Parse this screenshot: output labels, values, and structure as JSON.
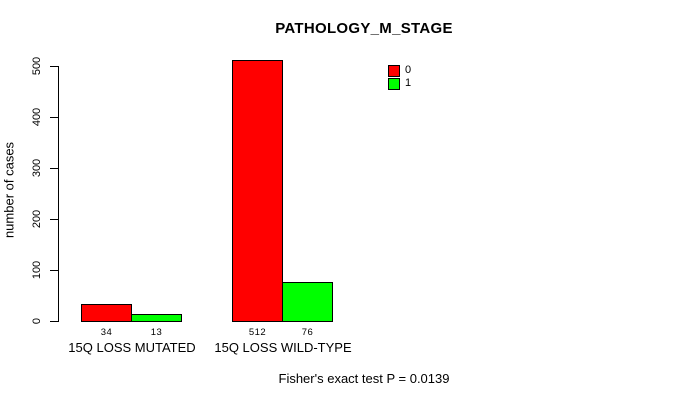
{
  "chart_data": {
    "type": "bar",
    "title": "PATHOLOGY_M_STAGE",
    "xlabel": "",
    "ylabel": "number of cases",
    "ylim": [
      0,
      500
    ],
    "yticks": [
      0,
      100,
      200,
      300,
      400,
      500
    ],
    "categories": [
      "15Q LOSS MUTATED",
      "15Q LOSS WILD-TYPE"
    ],
    "series": [
      {
        "name": "0",
        "color": "#FF0000",
        "values": [
          34,
          512
        ]
      },
      {
        "name": "1",
        "color": "#00FF00",
        "values": [
          13,
          76
        ]
      }
    ],
    "show_bar_values": true,
    "grid": false,
    "legend_position": "top-right-inside",
    "annotation": "Fisher's exact test P = 0.0139",
    "axis_color": "#000000",
    "background_color": "#FFFFFF"
  }
}
